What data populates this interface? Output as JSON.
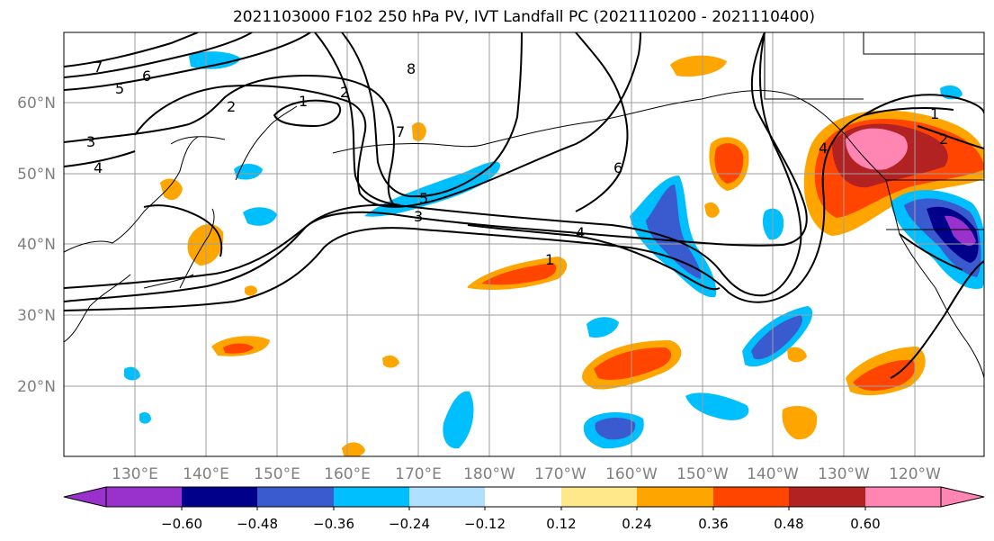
{
  "title": "2021103000 F102 250 hPa PV, IVT Landfall PC (2021110200 - 2021110400)",
  "map": {
    "lat_labels": [
      "60°N",
      "50°N",
      "40°N",
      "30°N",
      "20°N"
    ],
    "lon_labels": [
      "130°E",
      "140°E",
      "150°E",
      "160°E",
      "170°E",
      "180°W",
      "170°W",
      "160°W",
      "150°W",
      "140°W",
      "130°W",
      "120°W"
    ],
    "contour_labels": [
      "7",
      "6",
      "5",
      "3",
      "4",
      "2",
      "1",
      "2",
      "8",
      "7",
      "6",
      "5",
      "3",
      "4",
      "1",
      "1",
      "2",
      "4"
    ],
    "line_color": "#000000",
    "grid_color": "#9e9e9e"
  },
  "colorbar": {
    "colors": [
      "#9932CC",
      "#00008B",
      "#3A5BCF",
      "#00BFFF",
      "#B0E0FF",
      "#FFFFFF",
      "#FFE88A",
      "#FFA500",
      "#FF4500",
      "#B22222",
      "#FF85B3"
    ],
    "tick_labels": [
      "−0.60",
      "−0.48",
      "−0.36",
      "−0.24",
      "−0.12",
      "0.12",
      "0.24",
      "0.36",
      "0.48",
      "0.60"
    ]
  }
}
